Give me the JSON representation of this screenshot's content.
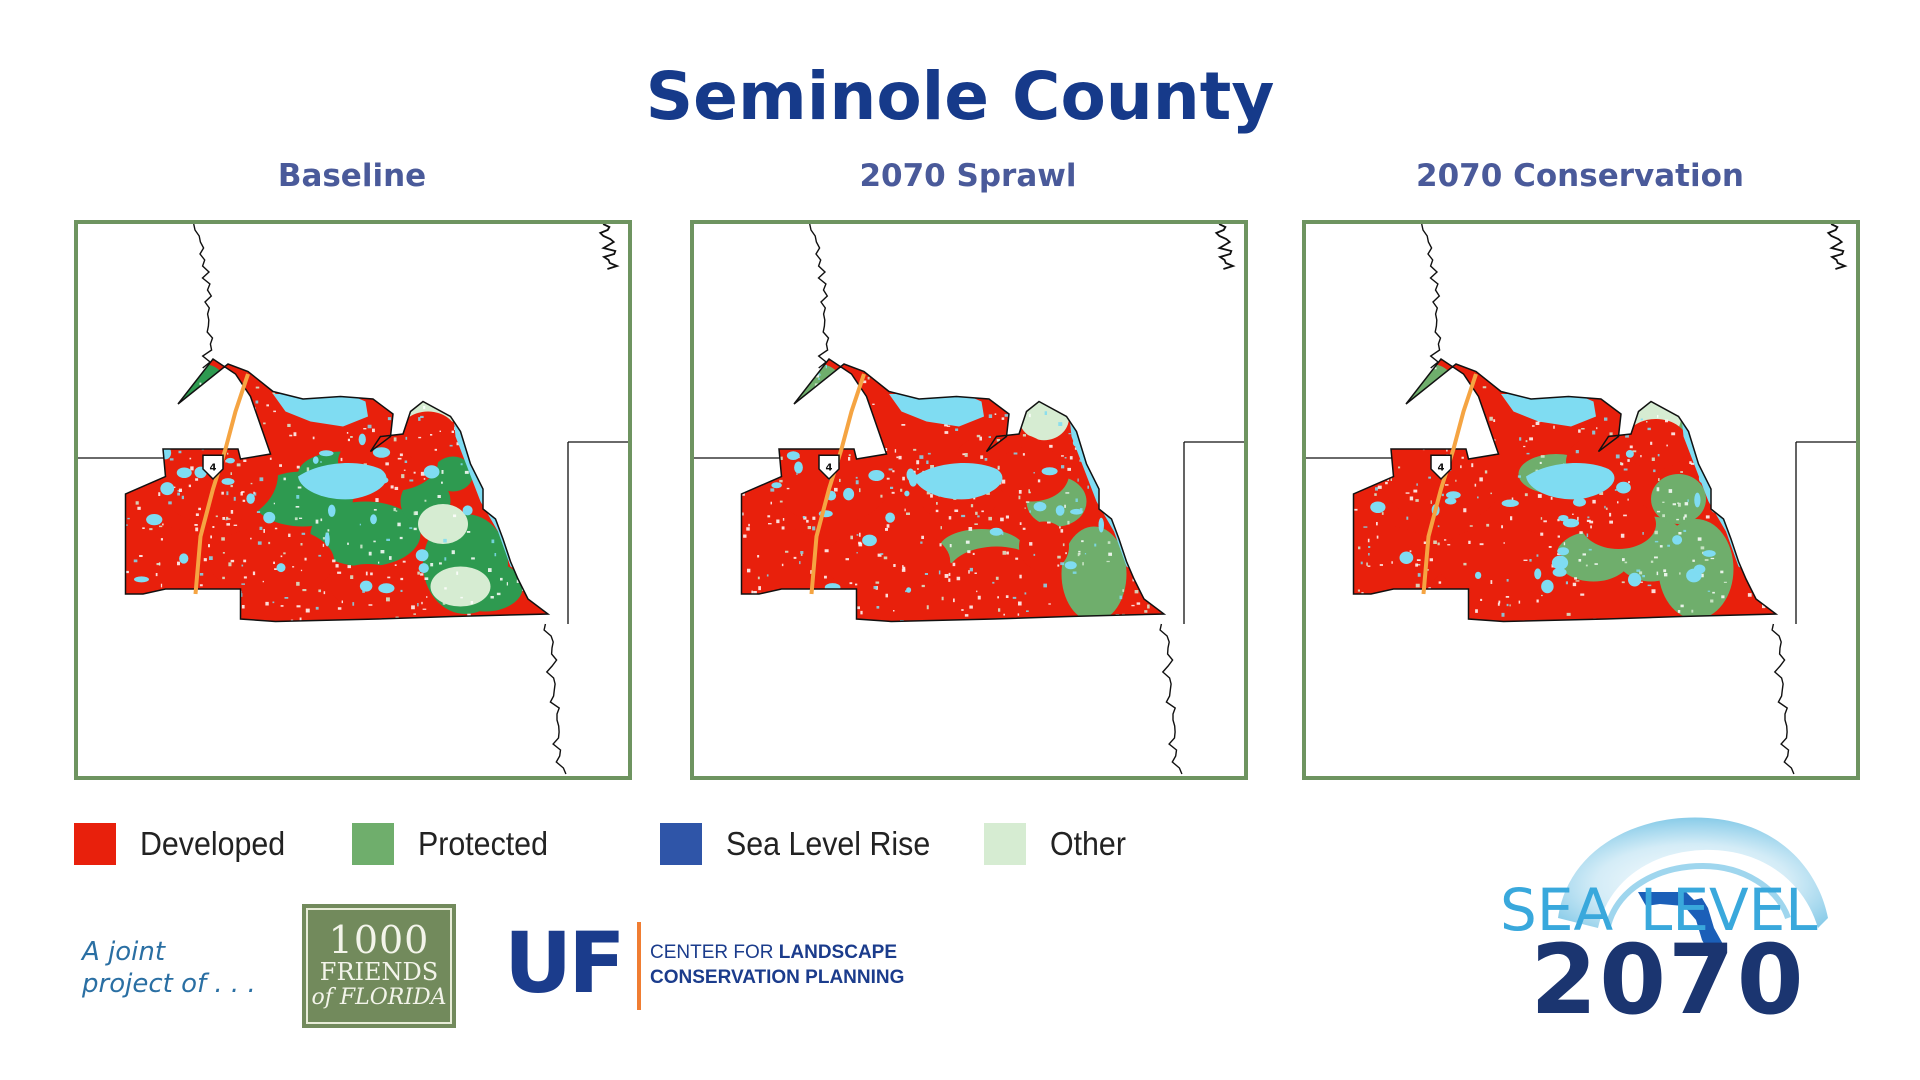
{
  "title": "Seminole County",
  "panels": [
    {
      "label": "Baseline",
      "scenario": "baseline"
    },
    {
      "label": "2070 Sprawl",
      "scenario": "sprawl"
    },
    {
      "label": "2070 Conservation",
      "scenario": "conservation"
    }
  ],
  "map": {
    "road_shield": "4"
  },
  "legend": [
    {
      "label": "Developed",
      "color": "#e8200c"
    },
    {
      "label": "Protected",
      "color": "#6fae6c"
    },
    {
      "label": "Sea Level Rise",
      "color": "#2f55a8"
    },
    {
      "label": "Other",
      "color": "#d6ecd2"
    }
  ],
  "colors": {
    "title": "#163a8a",
    "panel_label": "#4a5a9a",
    "frame": "#6e9460",
    "water": "#7fdcf2",
    "highway": "#f5a442"
  },
  "footer": {
    "joint_line1": "A joint",
    "joint_line2": "project of . . .",
    "kff_line1": "1000",
    "kff_line2": "FRIENDS",
    "kff_line3": "of FLORIDA",
    "uf_text": "UF",
    "clcp_line1_a": "CENTER FOR ",
    "clcp_line1_b": "LANDSCAPE",
    "clcp_line2": "CONSERVATION PLANNING",
    "slr_word1": "SEA",
    "slr_word2": "LEVEL",
    "slr_year": "2070"
  }
}
